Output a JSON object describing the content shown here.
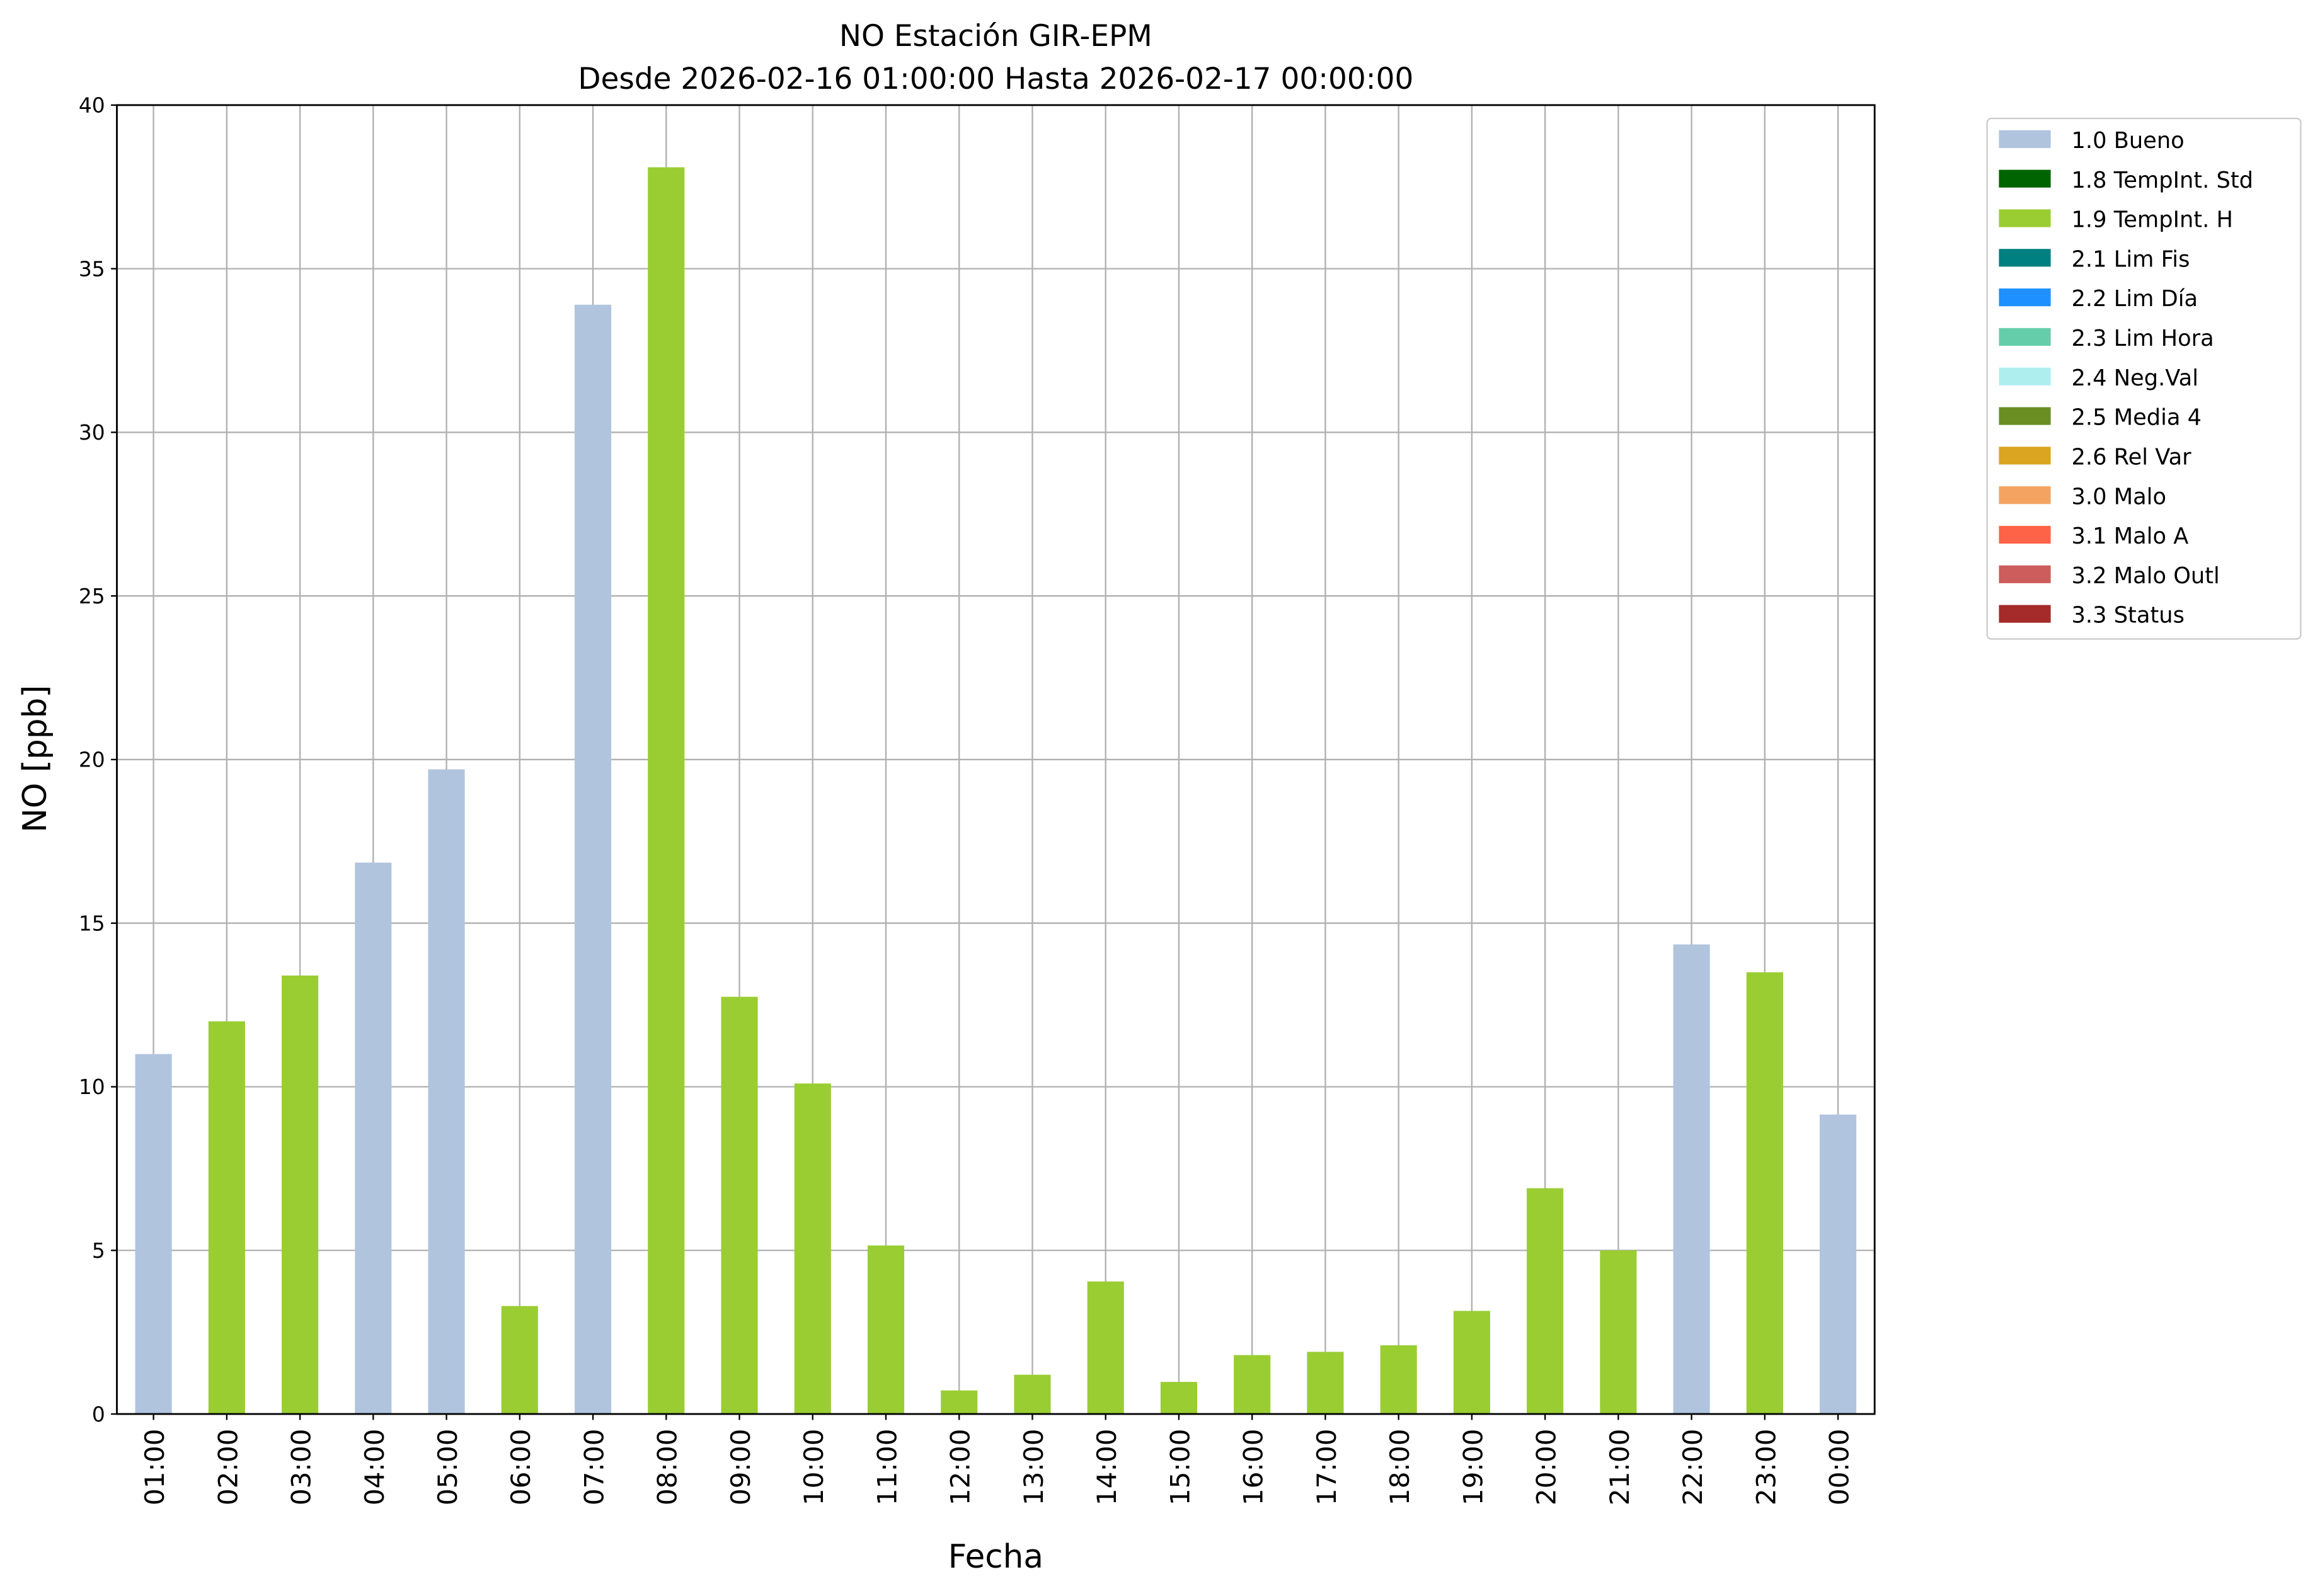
{
  "chart_data": {
    "type": "bar",
    "title": "NO Estación GIR-EPM",
    "subtitle": "Desde 2026-02-16 01:00:00 Hasta 2026-02-17 00:00:00",
    "xlabel": "Fecha",
    "ylabel": "NO [ppb]",
    "ylim": [
      0,
      40
    ],
    "yticks": [
      0,
      5,
      10,
      15,
      20,
      25,
      30,
      35,
      40
    ],
    "grid": true,
    "legend_placement": "outside-top-right",
    "categories": [
      "01:00",
      "02:00",
      "03:00",
      "04:00",
      "05:00",
      "06:00",
      "07:00",
      "08:00",
      "09:00",
      "10:00",
      "11:00",
      "12:00",
      "13:00",
      "14:00",
      "15:00",
      "16:00",
      "17:00",
      "18:00",
      "19:00",
      "20:00",
      "21:00",
      "22:00",
      "23:00",
      "00:00"
    ],
    "values": [
      11.0,
      12.0,
      13.4,
      16.85,
      19.7,
      3.3,
      33.9,
      38.1,
      12.75,
      10.1,
      5.15,
      0.72,
      1.2,
      4.05,
      0.98,
      1.8,
      1.9,
      2.1,
      3.15,
      6.9,
      5.0,
      14.35,
      13.5,
      9.15
    ],
    "flags": [
      "1.0 Bueno",
      "1.9 TempInt. H",
      "1.9 TempInt. H",
      "1.0 Bueno",
      "1.0 Bueno",
      "1.9 TempInt. H",
      "1.0 Bueno",
      "1.9 TempInt. H",
      "1.9 TempInt. H",
      "1.9 TempInt. H",
      "1.9 TempInt. H",
      "1.9 TempInt. H",
      "1.9 TempInt. H",
      "1.9 TempInt. H",
      "1.9 TempInt. H",
      "1.9 TempInt. H",
      "1.9 TempInt. H",
      "1.9 TempInt. H",
      "1.9 TempInt. H",
      "1.9 TempInt. H",
      "1.9 TempInt. H",
      "1.0 Bueno",
      "1.9 TempInt. H",
      "1.0 Bueno"
    ],
    "legend": [
      {
        "name": "1.0 Bueno",
        "color": "#b0c4de"
      },
      {
        "name": "1.8 TempInt. Std",
        "color": "#006400"
      },
      {
        "name": "1.9 TempInt. H",
        "color": "#9acd32"
      },
      {
        "name": "2.1 Lim Fis",
        "color": "#008080"
      },
      {
        "name": "2.2 Lim Día",
        "color": "#1e90ff"
      },
      {
        "name": "2.3 Lim Hora",
        "color": "#66cdaa"
      },
      {
        "name": "2.4 Neg.Val",
        "color": "#afeeee"
      },
      {
        "name": "2.5 Media 4",
        "color": "#6b8e23"
      },
      {
        "name": "2.6 Rel Var",
        "color": "#daa520"
      },
      {
        "name": "3.0 Malo",
        "color": "#f4a460"
      },
      {
        "name": "3.1 Malo A",
        "color": "#ff6347"
      },
      {
        "name": "3.2 Malo Outl",
        "color": "#cd5c5c"
      },
      {
        "name": "3.3 Status",
        "color": "#a52a2a"
      }
    ]
  }
}
